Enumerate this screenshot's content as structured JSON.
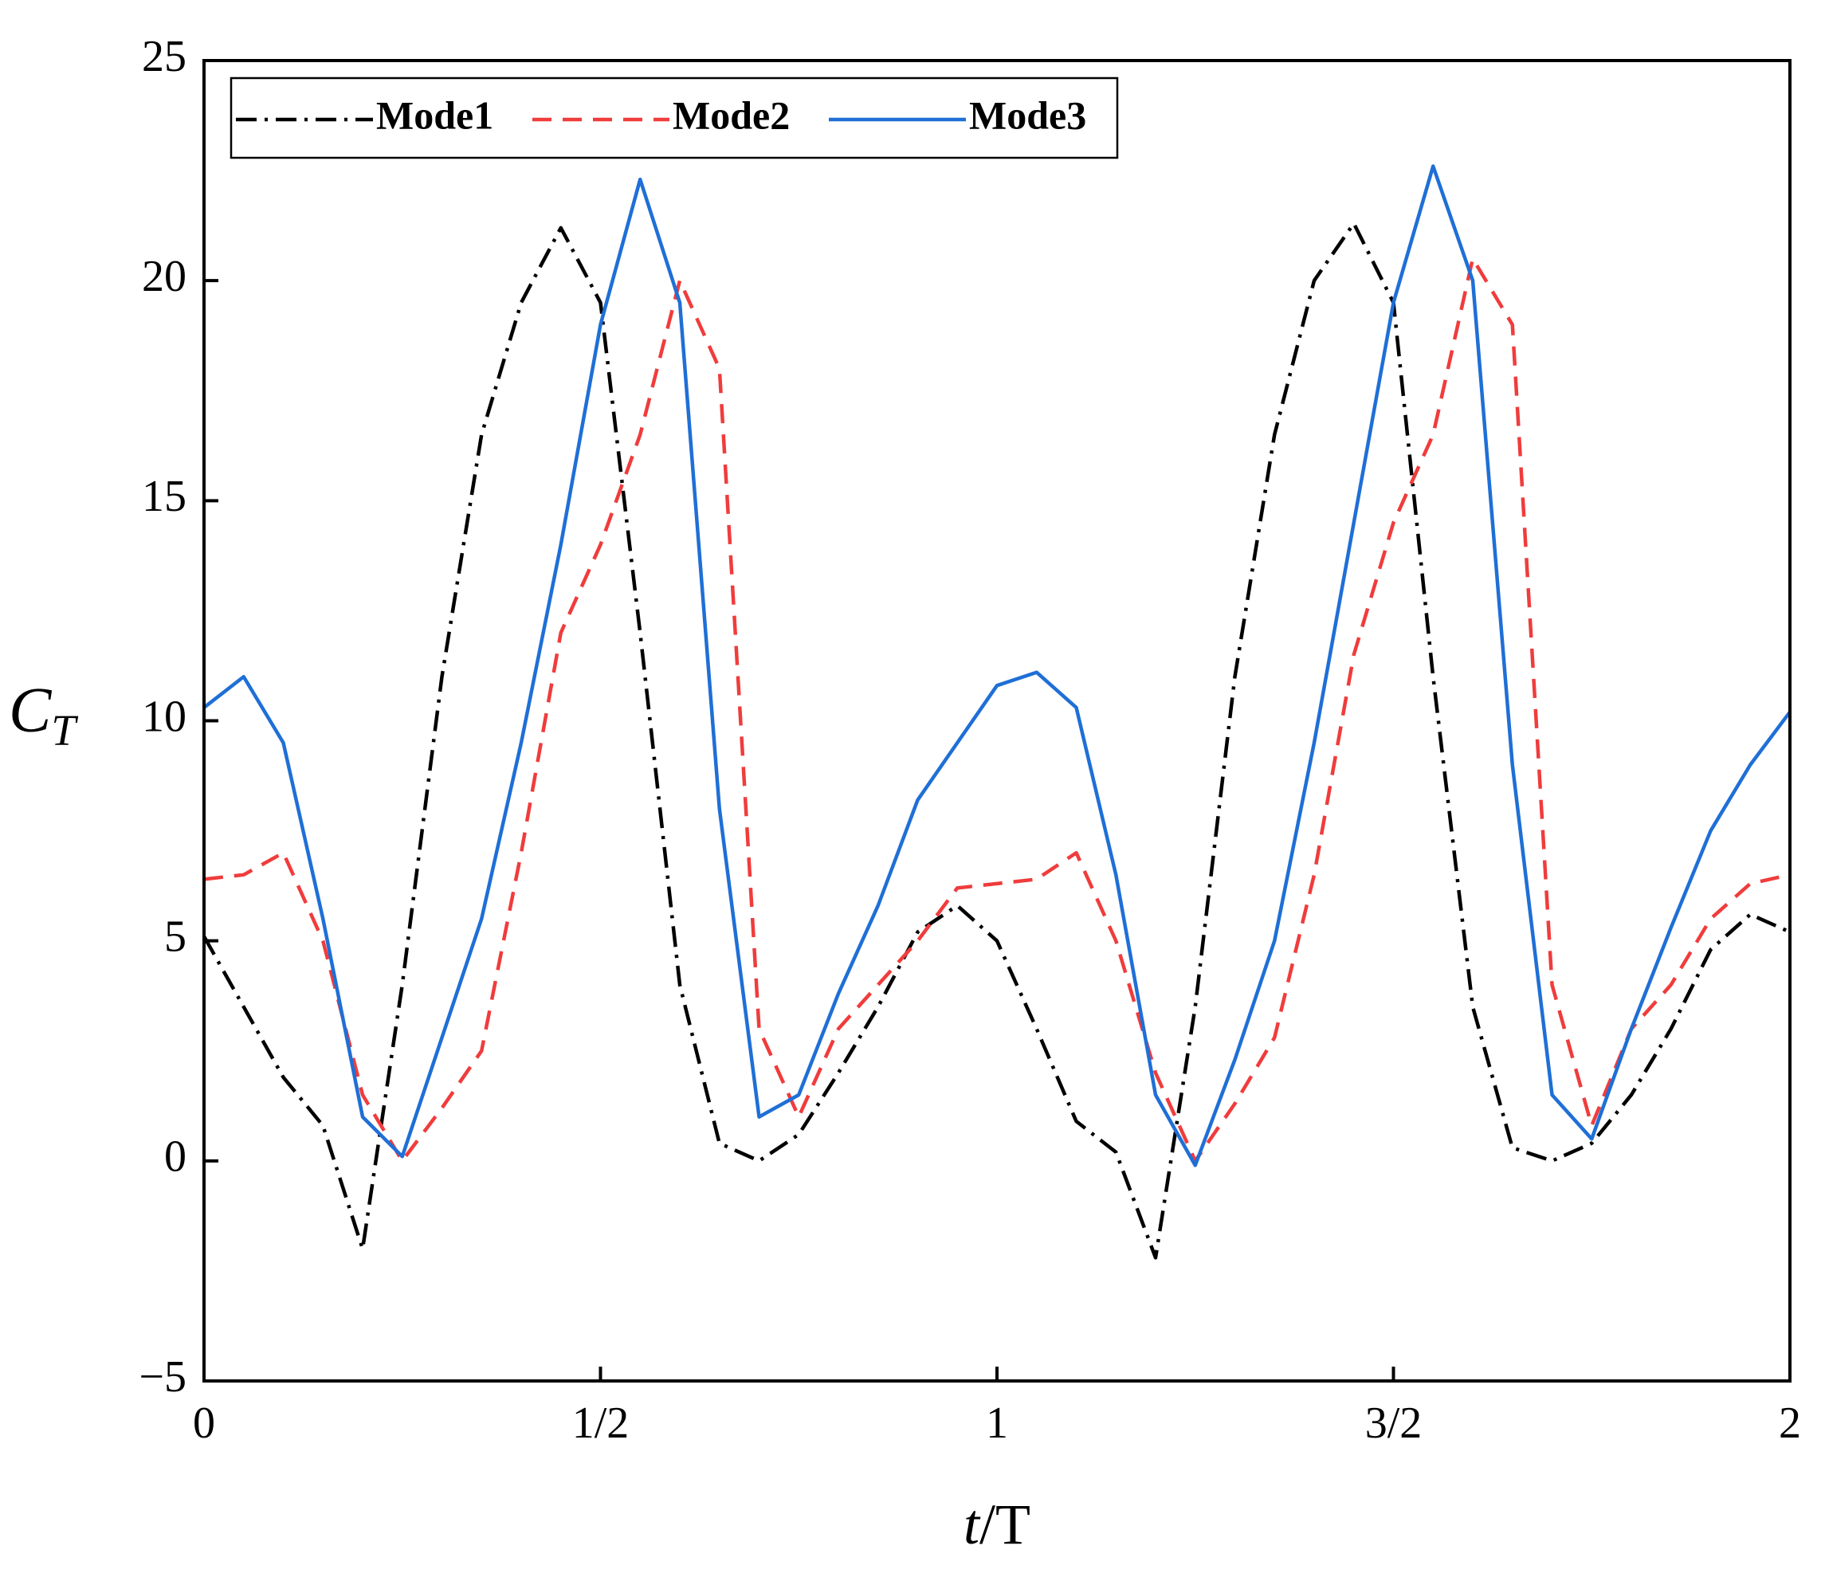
{
  "chart_data": {
    "type": "line",
    "xlabel": [
      "t",
      "/T"
    ],
    "ylabel": [
      "C",
      "T"
    ],
    "x": [
      0,
      0.05,
      0.1,
      0.15,
      0.2,
      0.25,
      0.3,
      0.35,
      0.4,
      0.45,
      0.5,
      0.55,
      0.6,
      0.65,
      0.7,
      0.75,
      0.8,
      0.85,
      0.9,
      0.95,
      1.0,
      1.05,
      1.1,
      1.15,
      1.2,
      1.25,
      1.3,
      1.35,
      1.4,
      1.45,
      1.5,
      1.55,
      1.6,
      1.65,
      1.7,
      1.75,
      1.8,
      1.85,
      1.9,
      1.95,
      2.0
    ],
    "series": [
      {
        "name": "Mode1",
        "color": "#000000",
        "dash": "dashdot",
        "values": [
          5.1,
          3.5,
          1.9,
          0.8,
          -2.0,
          4.0,
          11.0,
          16.5,
          19.5,
          21.2,
          19.5,
          12.0,
          4.0,
          0.4,
          0.0,
          0.6,
          2.0,
          3.5,
          5.2,
          5.8,
          5.0,
          3.0,
          0.9,
          0.2,
          -2.2,
          3.5,
          11.0,
          16.5,
          20.0,
          21.3,
          19.5,
          11.0,
          3.5,
          0.3,
          0.0,
          0.4,
          1.5,
          3.0,
          4.8,
          5.6,
          5.2
        ]
      },
      {
        "name": "Mode2",
        "color": "#f03c3c",
        "dash": "dashed",
        "values": [
          6.4,
          6.5,
          7.0,
          5.0,
          1.5,
          0.0,
          1.2,
          2.5,
          7.0,
          12.0,
          14.0,
          16.5,
          20.0,
          18.0,
          3.0,
          1.0,
          3.0,
          4.0,
          5.0,
          6.2,
          6.3,
          6.4,
          7.0,
          5.0,
          2.0,
          0.0,
          1.3,
          2.8,
          6.5,
          11.5,
          14.5,
          16.5,
          20.5,
          19.0,
          4.0,
          0.8,
          3.0,
          4.0,
          5.5,
          6.3,
          6.5
        ]
      },
      {
        "name": "Mode3",
        "color": "#1f6fd6",
        "dash": "solid",
        "values": [
          10.3,
          11.0,
          9.5,
          5.5,
          1.0,
          0.1,
          2.8,
          5.5,
          9.5,
          14.0,
          19.0,
          22.3,
          19.5,
          8.0,
          1.0,
          1.5,
          3.8,
          5.8,
          8.2,
          9.5,
          10.8,
          11.1,
          10.3,
          6.5,
          1.5,
          -0.1,
          2.3,
          5.0,
          9.5,
          14.5,
          19.5,
          22.6,
          20.0,
          9.0,
          1.5,
          0.5,
          3.0,
          5.3,
          7.5,
          9.0,
          10.2
        ]
      }
    ],
    "xlim": [
      0,
      2
    ],
    "xticks": [
      0,
      {
        "value": 0.5,
        "label": "1/2"
      },
      1,
      {
        "value": 1.5,
        "label": "3/2"
      },
      2
    ],
    "ylim": [
      -5,
      25
    ],
    "yticks": [
      {
        "value": -5,
        "label": "−5"
      },
      0,
      5,
      10,
      15,
      20,
      25
    ],
    "legend": "upper left",
    "grid": false
  }
}
